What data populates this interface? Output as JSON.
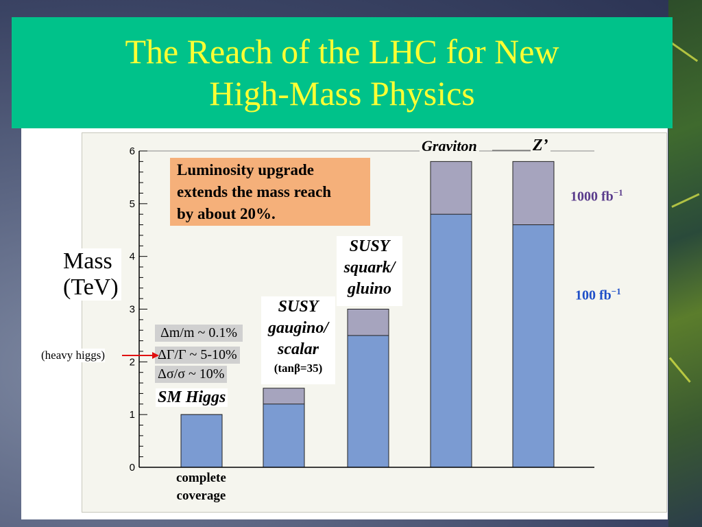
{
  "slide": {
    "title_line1": "The Reach of the LHC for New",
    "title_line2": "High-Mass Physics"
  },
  "colors": {
    "title_bg": "#00c28a",
    "title_text": "#ffff33",
    "bar_100fb": "#7b9bd2",
    "bar_1000fb": "#a6a4be",
    "note_bg": "#f5b07a",
    "label_1000fb": "#5a3c8c",
    "label_100fb": "#1f4fc8",
    "arrow": "#e01010"
  },
  "axis": {
    "ylabel_line1": "Mass",
    "ylabel_line2": "(TeV)"
  },
  "note": {
    "line1": "Luminosity upgrade",
    "line2": "extends the mass reach",
    "line3": "by about 20%."
  },
  "labels": {
    "sm_higgs": "SM Higgs",
    "complete_line1": "complete",
    "complete_line2": "coverage",
    "dm_m": "Δm/m ~ 0.1%",
    "dgamma": "ΔΓ/Γ ~ 5-10%",
    "dsigma": "Δσ/σ ~ 10%",
    "heavy_higgs": "(heavy higgs)",
    "gaugino_line1": "SUSY",
    "gaugino_line2": "gaugino/",
    "gaugino_line3": "scalar",
    "tanbeta": "(tanβ=35)",
    "squark_line1": "SUSY",
    "squark_line2": "squark/",
    "squark_line3": "gluino",
    "graviton": "Graviton",
    "zprime": "Z’",
    "lumi_1000": "1000 fb",
    "lumi_1000_exp": "−1",
    "lumi_100": "100 fb",
    "lumi_100_exp": "−1"
  },
  "chart_data": {
    "type": "bar",
    "ylabel": "Mass (TeV)",
    "ylim": [
      0,
      6
    ],
    "yticks": [
      "0",
      "1",
      "2",
      "3",
      "4",
      "5",
      "6"
    ],
    "categories": [
      "SM Higgs",
      "SUSY gaugino/scalar",
      "SUSY squark/gluino",
      "Graviton",
      "Z’"
    ],
    "series": [
      {
        "name": "100 fb−1",
        "values": [
          1.0,
          1.2,
          2.5,
          4.8,
          4.6
        ]
      },
      {
        "name": "1000 fb−1",
        "values": [
          1.0,
          1.5,
          3.0,
          5.8,
          5.8
        ]
      }
    ]
  }
}
